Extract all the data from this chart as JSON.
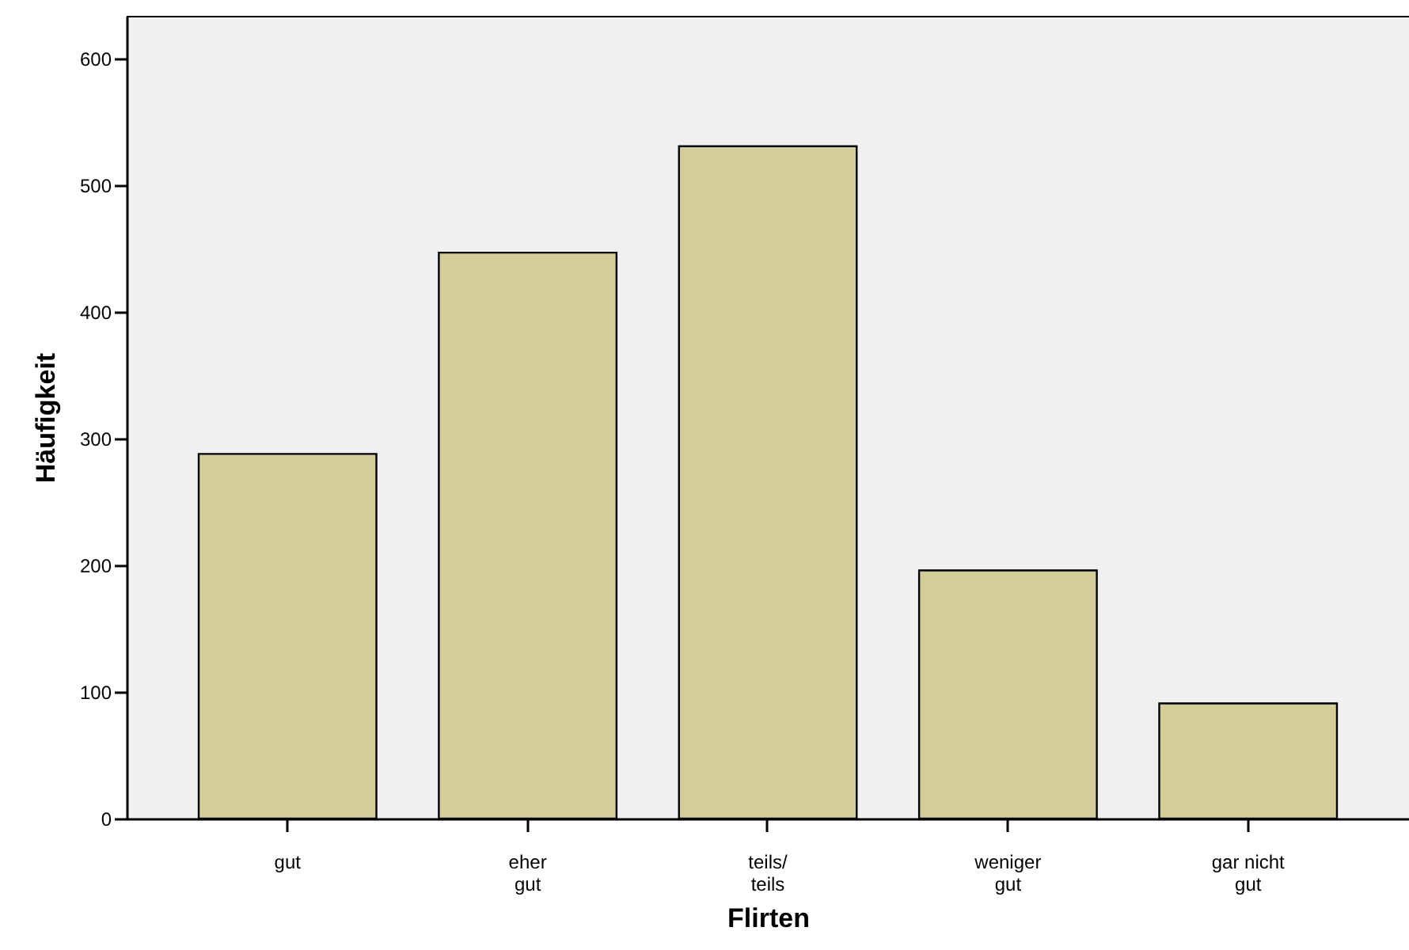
{
  "chart_data": {
    "type": "bar",
    "xlabel": "Flirten",
    "ylabel": "Häufigkeit",
    "categories": [
      "gut",
      "eher\ngut",
      "teils/\nteils",
      "weniger\ngut",
      "gar nicht\ngut"
    ],
    "values": [
      288,
      447,
      531,
      196,
      91
    ],
    "color": "#d3ce97",
    "ylim": [
      0,
      634
    ],
    "yticks": [
      0,
      100,
      200,
      300,
      400,
      500,
      600
    ],
    "grid": false
  }
}
